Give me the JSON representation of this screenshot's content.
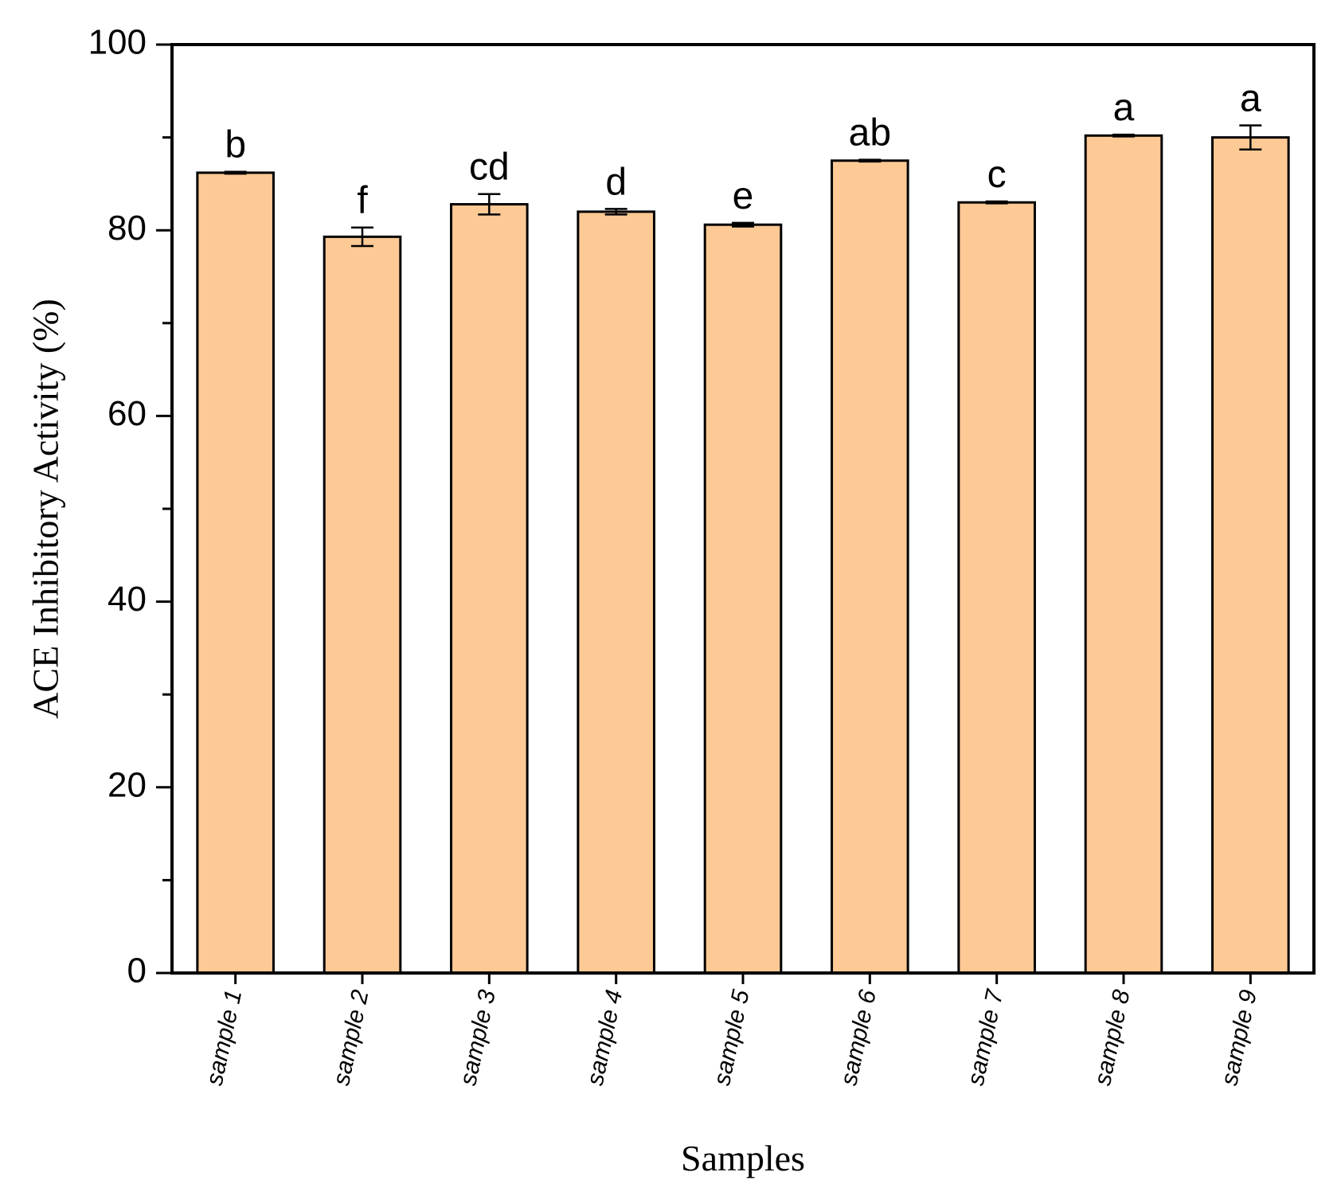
{
  "chart_data": {
    "type": "bar",
    "title": "",
    "xlabel": "Samples",
    "ylabel": "ACE Inhibitory Activity (%)",
    "ylim": [
      0,
      100
    ],
    "yticks": [
      "0",
      "20",
      "40",
      "60",
      "80",
      "100"
    ],
    "categories": [
      "sample 1",
      "sample 2",
      "sample 3",
      "sample 4",
      "sample 5",
      "sample 6",
      "sample 7",
      "sample 8",
      "sample 9"
    ],
    "values": [
      86.2,
      79.3,
      82.8,
      82.0,
      80.6,
      87.5,
      83.0,
      90.2,
      90.0
    ],
    "errors": [
      0.1,
      1.0,
      1.1,
      0.3,
      0.2,
      0.1,
      0.1,
      0.1,
      1.3
    ],
    "significance": [
      "b",
      "f",
      "cd",
      "d",
      "e",
      "ab",
      "c",
      "a",
      "a"
    ],
    "bar_color": "#FDC995",
    "grid": false,
    "legend": "none"
  }
}
